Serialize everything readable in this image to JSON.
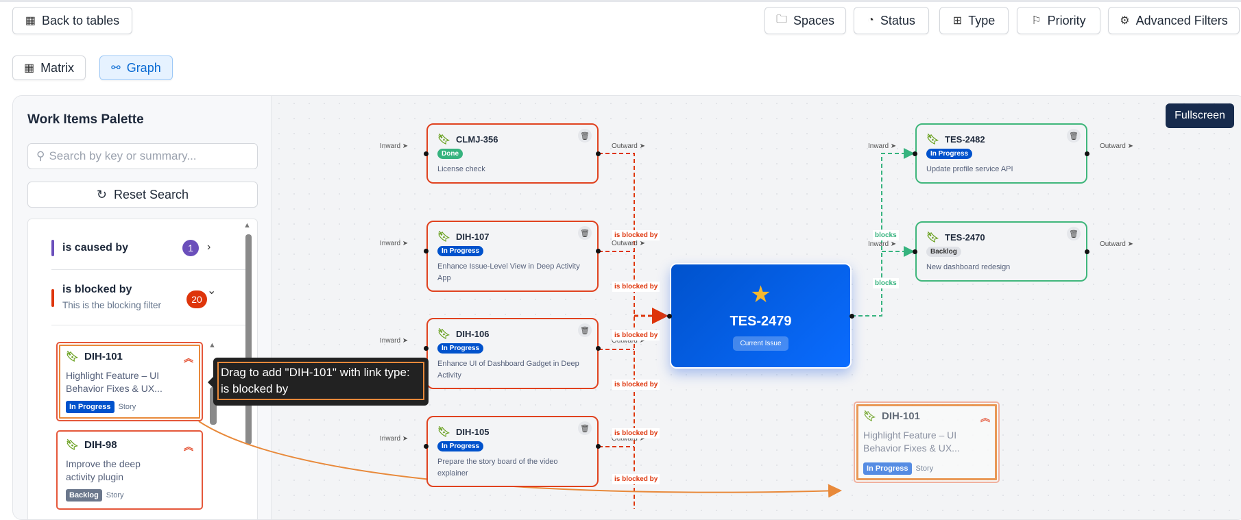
{
  "toolbar": {
    "back_label": "Back to tables",
    "filters": [
      "Spaces",
      "Status",
      "Type",
      "Priority",
      "Advanced Filters"
    ]
  },
  "views": {
    "matrix": "Matrix",
    "graph": "Graph",
    "active": "Graph"
  },
  "palette": {
    "title": "Work Items Palette",
    "search_placeholder": "Search by key or summary...",
    "reset_label": "Reset Search",
    "groups": [
      {
        "label": "is caused by",
        "count": "1",
        "color": "#6b4fbb",
        "expanded": false
      },
      {
        "label": "is blocked by",
        "subtitle": "This is the blocking filter",
        "count": "20",
        "color": "#de350b",
        "expanded": true
      }
    ],
    "items": [
      {
        "key": "DIH-101",
        "summary": "Highlight Feature – UI Behavior Fixes & UX...",
        "status": "In Progress",
        "type": "Story",
        "priority": "high"
      },
      {
        "key": "DIH-98",
        "summary": "Improve the deep activity plugin",
        "status": "Backlog",
        "type": "Story",
        "priority": "high"
      }
    ],
    "tooltip": "Drag to add \"DIH-101\" with link type: is blocked by"
  },
  "graph": {
    "fullscreen_label": "Fullscreen",
    "inward_label": "Inward",
    "outward_label": "Outward",
    "current": {
      "key": "TES-2479",
      "tag": "Current Issue"
    },
    "inward_nodes": [
      {
        "key": "CLMJ-356",
        "status": "Done",
        "summary": "License check"
      },
      {
        "key": "DIH-107",
        "status": "In Progress",
        "summary": "Enhance Issue-Level View in Deep Activity App"
      },
      {
        "key": "DIH-106",
        "status": "In Progress",
        "summary": "Enhance UI of Dashboard Gadget in Deep Activity"
      },
      {
        "key": "DIH-105",
        "status": "In Progress",
        "summary": "Prepare the story board of the video explainer"
      }
    ],
    "outward_nodes": [
      {
        "key": "TES-2482",
        "status": "In Progress",
        "summary": "Update profile service API"
      },
      {
        "key": "TES-2470",
        "status": "Backlog",
        "summary": "New dashboard redesign"
      }
    ],
    "edge_labels": {
      "blocked": "is blocked by",
      "blocks": "blocks"
    },
    "drag_preview": {
      "key": "DIH-101",
      "summary": "Highlight Feature – UI Behavior Fixes & UX...",
      "status": "In Progress",
      "type": "Story"
    }
  },
  "colors": {
    "blocked": "#de350b",
    "blocks": "#36b37e",
    "in_progress": "#0052cc",
    "done": "#36b37e",
    "backlog": "#6b778c",
    "accent": "#0052cc"
  }
}
